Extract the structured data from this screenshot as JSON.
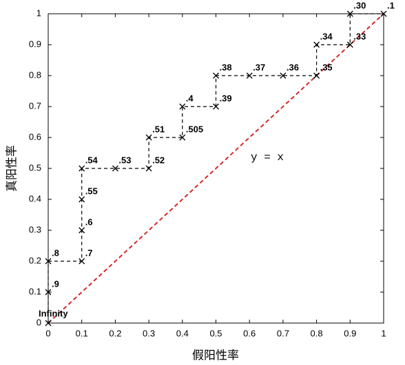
{
  "chart_data": {
    "type": "roc",
    "xlabel": "假阳性率",
    "ylabel": "真阳性率",
    "x": [
      0,
      0,
      0,
      0.1,
      0.1,
      0.1,
      0.1,
      0.2,
      0.3,
      0.3,
      0.4,
      0.4,
      0.5,
      0.5,
      0.6,
      0.7,
      0.8,
      0.8,
      0.9,
      0.9,
      1
    ],
    "values": [
      0,
      0.1,
      0.2,
      0.2,
      0.3,
      0.4,
      0.5,
      0.5,
      0.5,
      0.6,
      0.6,
      0.7,
      0.7,
      0.8,
      0.8,
      0.8,
      0.8,
      0.9,
      0.9,
      1,
      1
    ],
    "labels": [
      "Infinity",
      ".9",
      ".8",
      ".7",
      ".6",
      ".55",
      ".54",
      ".53",
      ".52",
      ".51",
      ".505",
      ".4",
      ".39",
      ".38",
      ".37",
      ".36",
      ".35",
      ".34",
      ".33",
      ".30",
      ".1"
    ],
    "color": "#000000",
    "reference_line": {
      "label": "y = x",
      "color": "#d62728"
    },
    "xlim": [
      0,
      1
    ],
    "ylim": [
      0,
      1
    ],
    "xticks": [
      0,
      0.1,
      0.2,
      0.3,
      0.4,
      0.5,
      0.6,
      0.7,
      0.8,
      0.9,
      1
    ],
    "yticks": [
      0,
      0.1,
      0.2,
      0.3,
      0.4,
      0.5,
      0.6,
      0.7,
      0.8,
      0.9,
      1
    ]
  }
}
